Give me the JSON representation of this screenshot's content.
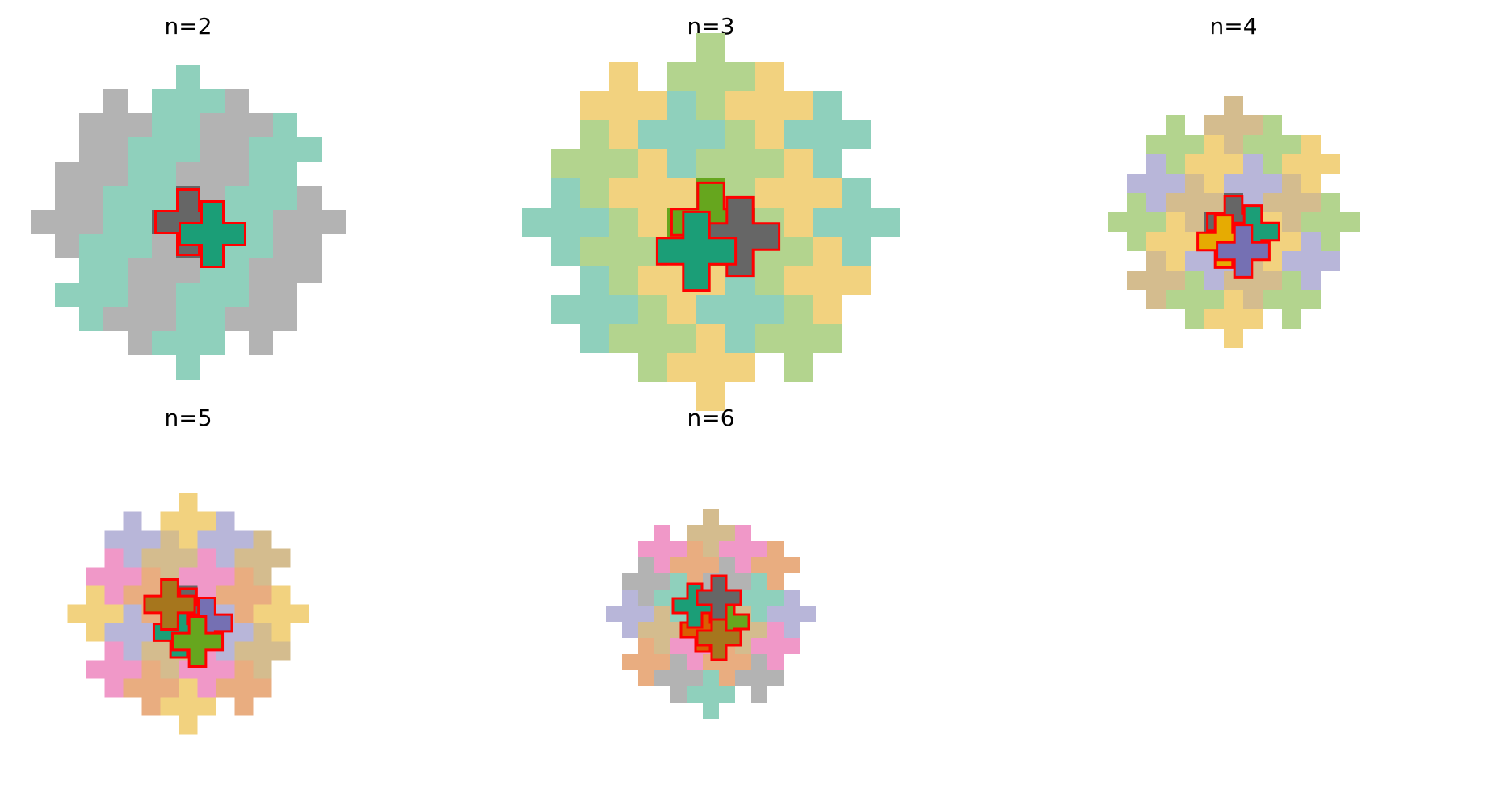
{
  "figure": {
    "panels": [
      {
        "title": "n=2",
        "colors": {
          "a": "#666666",
          "b": "#1b9e77"
        },
        "n": 2
      },
      {
        "title": "n=3",
        "colors": {
          "a": "#66a61e",
          "b": "#666666",
          "c": "#1b9e77"
        },
        "n": 3
      },
      {
        "title": "n=4",
        "colors": {
          "a": "#666666",
          "b": "#1b9e77",
          "c": "#e6ab02",
          "d": "#7570b3"
        },
        "n": 4
      },
      {
        "title": "n=5",
        "colors": {
          "a": "#666666",
          "b": "#7570b3",
          "c": "#1b9e77",
          "d": "#66a61e",
          "e": "#a6761d"
        },
        "n": 5
      },
      {
        "title": "n=6",
        "colors": {
          "a": "#e7298a",
          "b": "#66a61e",
          "c": "#d95f02",
          "d": "#a6761d",
          "e": "#1b9e77",
          "f": "#666666"
        },
        "n": 6
      }
    ],
    "outline_color": "#ff0000"
  }
}
